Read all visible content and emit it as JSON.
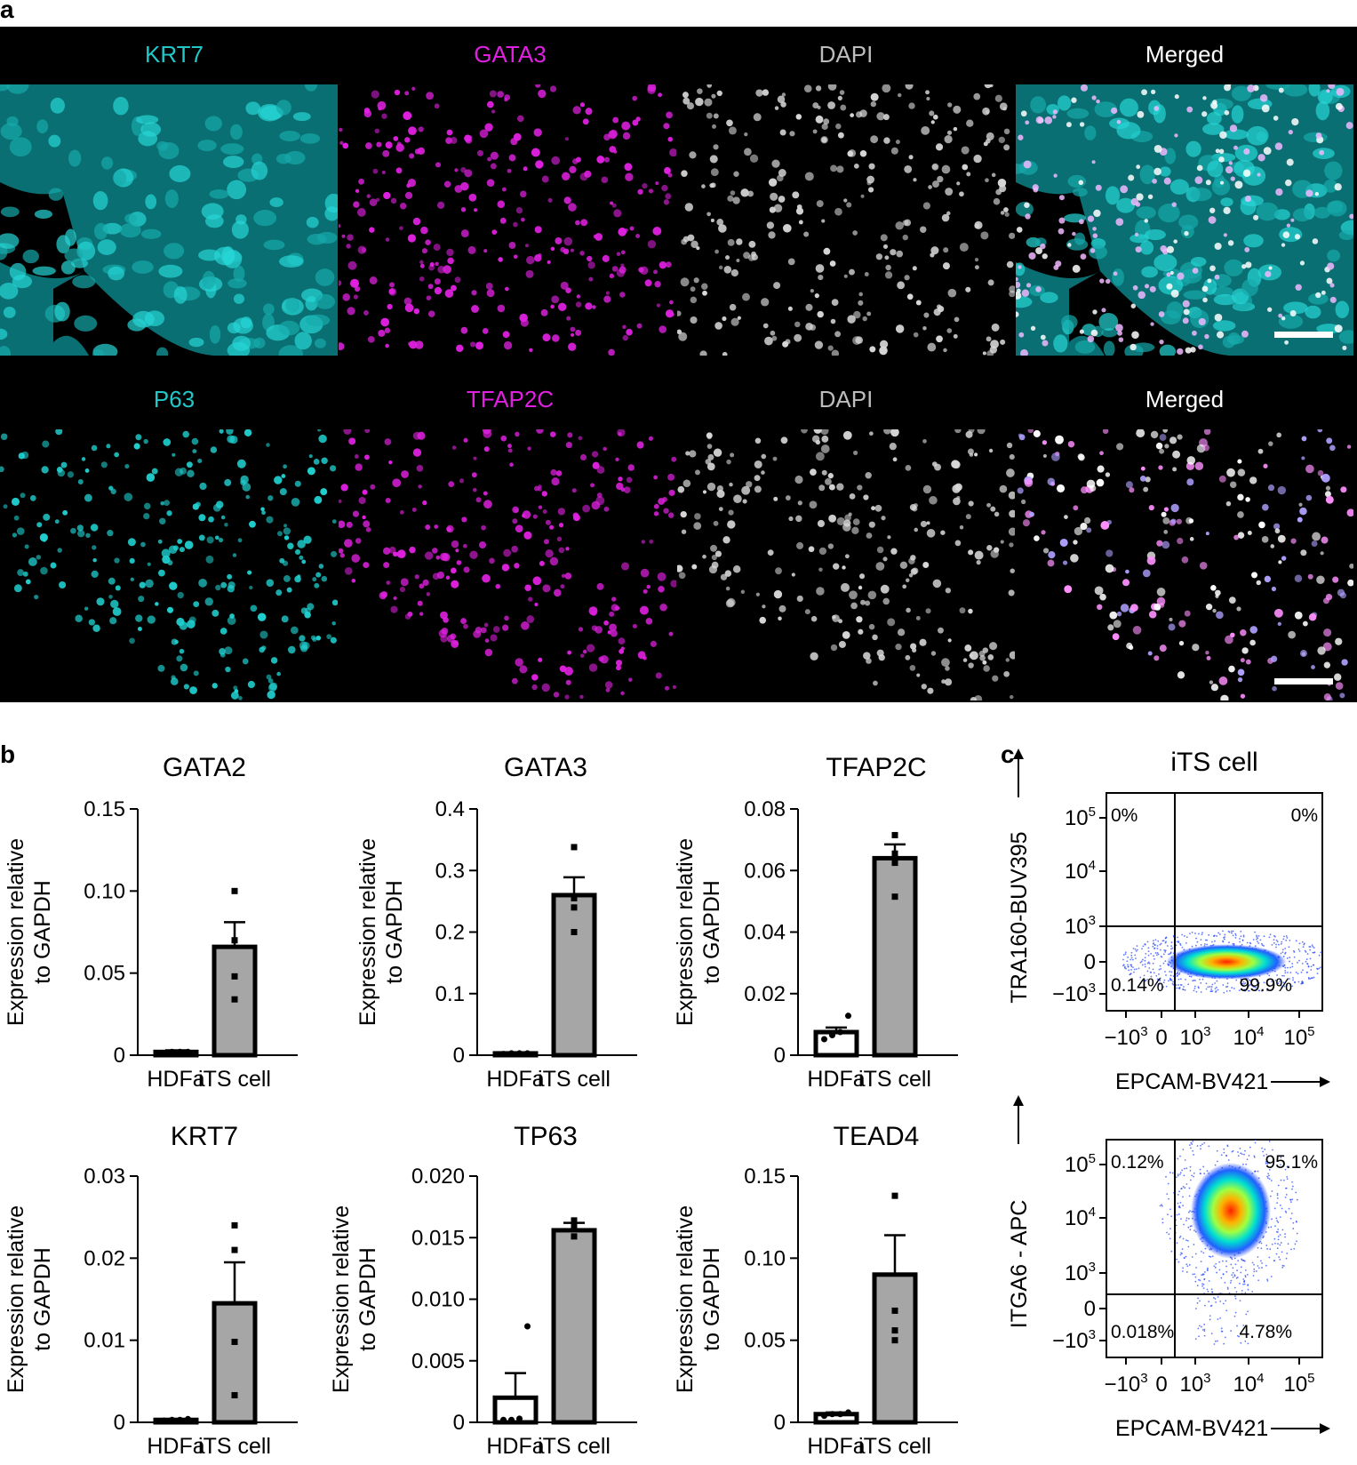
{
  "figure": {
    "panel_a_label": "a",
    "panel_b_label": "b",
    "panel_c_label": "c"
  },
  "micrographs": {
    "rows": [
      {
        "channels": [
          {
            "label": "KRT7",
            "color": "#22c8c8",
            "kind": "cyto-cyan"
          },
          {
            "label": "GATA3",
            "color": "#e020e0",
            "kind": "nuc-magenta"
          },
          {
            "label": "DAPI",
            "color": "#bdbdbd",
            "kind": "nuc-white"
          },
          {
            "label": "Merged",
            "color": "#ffffff",
            "kind": "merge1"
          }
        ]
      },
      {
        "channels": [
          {
            "label": "P63",
            "color": "#22c8c8",
            "kind": "nuc-cyan"
          },
          {
            "label": "TFAP2C",
            "color": "#e020e0",
            "kind": "nuc-magenta"
          },
          {
            "label": "DAPI",
            "color": "#bdbdbd",
            "kind": "nuc-white"
          },
          {
            "label": "Merged",
            "color": "#ffffff",
            "kind": "merge2"
          }
        ]
      }
    ]
  },
  "ylabel_line1": "Expression relative",
  "ylabel_line2": "to GAPDH",
  "chart_data": [
    {
      "type": "bar",
      "title": "GATA2",
      "categories": [
        "HDFa",
        "iTS cell"
      ],
      "values": [
        0.002,
        0.066
      ],
      "errors": [
        0.001,
        0.015
      ],
      "points": [
        [
          0.001,
          0.002,
          0.002,
          0.002
        ],
        [
          0.034,
          0.048,
          0.07,
          0.1
        ]
      ],
      "ylim": [
        0,
        0.15
      ],
      "yticks": [
        "0",
        "0.05",
        "0.10",
        "0.15"
      ],
      "ytick_values": [
        0,
        0.05,
        0.1,
        0.15
      ],
      "ylabel": "Expression relative to GAPDH"
    },
    {
      "type": "bar",
      "title": "GATA3",
      "categories": [
        "HDFa",
        "iTS cell"
      ],
      "values": [
        0.003,
        0.26
      ],
      "errors": [
        0.001,
        0.029
      ],
      "points": [
        [
          0.002,
          0.003,
          0.003,
          0.003
        ],
        [
          0.2,
          0.24,
          0.255,
          0.338
        ]
      ],
      "ylim": [
        0,
        0.4
      ],
      "yticks": [
        "0",
        "0.1",
        "0.2",
        "0.3",
        "0.4"
      ],
      "ytick_values": [
        0,
        0.1,
        0.2,
        0.3,
        0.4
      ],
      "ylabel": "Expression relative to GAPDH"
    },
    {
      "type": "bar",
      "title": "TFAP2C",
      "categories": [
        "HDFa",
        "iTS cell"
      ],
      "values": [
        0.0075,
        0.064
      ],
      "errors": [
        0.0015,
        0.0045
      ],
      "points": [
        [
          0.0052,
          0.0065,
          0.0075,
          0.0128
        ],
        [
          0.0515,
          0.0625,
          0.0655,
          0.0715
        ]
      ],
      "ylim": [
        0,
        0.08
      ],
      "yticks": [
        "0",
        "0.02",
        "0.04",
        "0.06",
        "0.08"
      ],
      "ytick_values": [
        0,
        0.02,
        0.04,
        0.06,
        0.08
      ],
      "ylabel": "Expression relative to GAPDH"
    },
    {
      "type": "bar",
      "title": "KRT7",
      "categories": [
        "HDFa",
        "iTS cell"
      ],
      "values": [
        0.0003,
        0.0145
      ],
      "errors": [
        0.0001,
        0.005
      ],
      "points": [
        [
          0.0002,
          0.0003,
          0.0003,
          0.0004
        ],
        [
          0.0033,
          0.0098,
          0.021,
          0.024
        ]
      ],
      "ylim": [
        0,
        0.03
      ],
      "yticks": [
        "0",
        "0.01",
        "0.02",
        "0.03"
      ],
      "ytick_values": [
        0,
        0.01,
        0.02,
        0.03
      ],
      "ylabel": "Expression relative to GAPDH"
    },
    {
      "type": "bar",
      "title": "TP63",
      "categories": [
        "HDFa",
        "iTS cell"
      ],
      "values": [
        0.002,
        0.0156
      ],
      "errors": [
        0.002,
        0.0006
      ],
      "points": [
        [
          0.0002,
          0.0002,
          0.0003,
          0.0078
        ],
        [
          0.0151,
          0.0158,
          0.0162,
          0.0164
        ]
      ],
      "ylim": [
        0,
        0.02
      ],
      "yticks": [
        "0",
        "0.005",
        "0.010",
        "0.015",
        "0.020"
      ],
      "ytick_values": [
        0,
        0.005,
        0.01,
        0.015,
        0.02
      ],
      "ylabel": "Expression relative to GAPDH"
    },
    {
      "type": "bar",
      "title": "TEAD4",
      "categories": [
        "HDFa",
        "iTS cell"
      ],
      "values": [
        0.005,
        0.09
      ],
      "errors": [
        0.001,
        0.024
      ],
      "points": [
        [
          0.004,
          0.005,
          0.005,
          0.006
        ],
        [
          0.05,
          0.056,
          0.068,
          0.138
        ]
      ],
      "ylim": [
        0,
        0.15
      ],
      "yticks": [
        "0",
        "0.05",
        "0.10",
        "0.15"
      ],
      "ytick_values": [
        0,
        0.05,
        0.1,
        0.15
      ],
      "ylabel": "Expression relative to GAPDH"
    },
    {
      "type": "scatter",
      "title": "iTS cell",
      "xlabel": "EPCAM-BV421",
      "ylabel": "TRA160-BUV395",
      "quadrants": {
        "top_left": "0%",
        "top_right": "0%",
        "bottom_left": "0.14%",
        "bottom_right": "99.9%"
      },
      "x_ticks": [
        "−10^3",
        "0",
        "10^3",
        "10^4",
        "10^5"
      ],
      "y_ticks": [
        "10^5",
        "10^4",
        "10^3",
        "0",
        "−10^3"
      ],
      "scale": "biexponential",
      "population_center": {
        "x": 2000,
        "y": 0
      }
    },
    {
      "type": "scatter",
      "title": "",
      "xlabel": "EPCAM-BV421",
      "ylabel": "ITGA6 - APC",
      "quadrants": {
        "top_left": "0.12%",
        "top_right": "95.1%",
        "bottom_left": "0.018%",
        "bottom_right": "4.78%"
      },
      "x_ticks": [
        "−10^3",
        "0",
        "10^3",
        "10^4",
        "10^5"
      ],
      "y_ticks": [
        "10^5",
        "10^4",
        "10^3",
        "0",
        "−10^3"
      ],
      "scale": "biexponential",
      "population_center": {
        "x": 3000,
        "y": 15000
      }
    }
  ]
}
